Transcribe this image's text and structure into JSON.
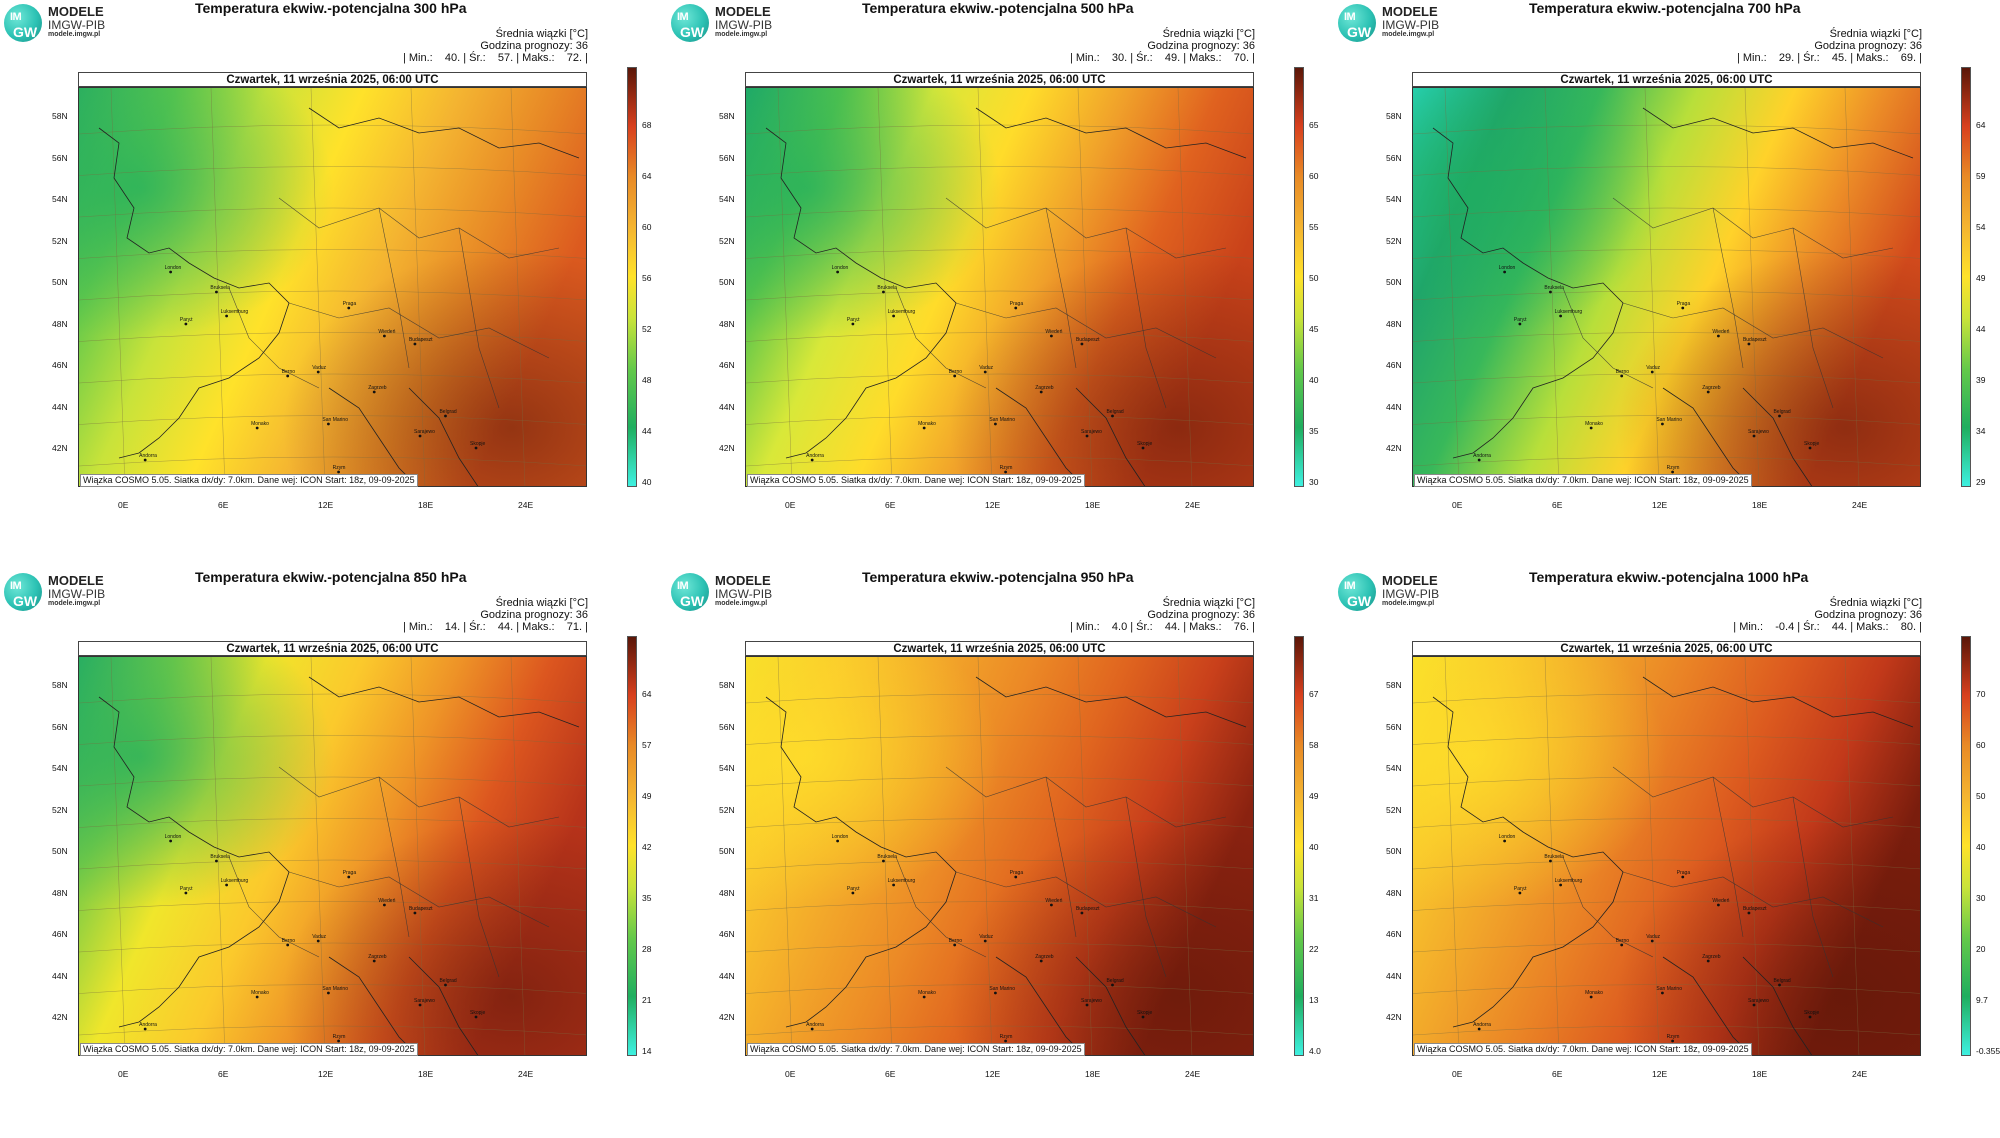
{
  "logo": {
    "name": "MODELE",
    "org": "IMGW-PIB",
    "url": "modele.imgw.pl",
    "im": "IM",
    "gw": "GW"
  },
  "stats_title": "Średnia wiązki [°C]",
  "forecast_hour": "Godzina prognozy: 36",
  "date": "Czwartek, 11 września 2025, 06:00 UTC",
  "source": "Wiązka COSMO 5.05. Siatka dx/dy: 7.0km. Dane wej: ICON Start: 18z, 09-09-2025",
  "lat_labels": [
    "58N",
    "56N",
    "54N",
    "52N",
    "50N",
    "48N",
    "46N",
    "44N",
    "42N"
  ],
  "lon_labels": [
    "0E",
    "6E",
    "12E",
    "18E",
    "24E"
  ],
  "cities": [
    "London",
    "Bruksela",
    "Paryż",
    "Luksemburg",
    "Praga",
    "Wiedeń",
    "Budapeszt",
    "Berno",
    "Vaduz",
    "Zagrzeb",
    "Belgrad",
    "San Marino",
    "Sarajewo",
    "Skopje",
    "Andorra",
    "Rzym",
    "Monako"
  ],
  "colors": {
    "low": "#3ef0e0",
    "green": "#1fae5f",
    "yellow": "#ffe22a",
    "orange": "#f2a12a",
    "red": "#d8401e",
    "dark": "#5a1608"
  },
  "panels": [
    {
      "title": "Temperatura ekwiw.-potencjalna 300 hPa",
      "stats": "| Min.:    40. | Śr.:    57. | Maks.:    72. |",
      "cbar_ticks": [
        "68",
        "64",
        "60",
        "56",
        "52",
        "48",
        "44",
        "40"
      ],
      "level": 300
    },
    {
      "title": "Temperatura ekwiw.-potencjalna 500 hPa",
      "stats": "| Min.:    30. | Śr.:    49. | Maks.:    70. |",
      "cbar_ticks": [
        "65",
        "60",
        "55",
        "50",
        "45",
        "40",
        "35",
        "30"
      ],
      "level": 500
    },
    {
      "title": "Temperatura ekwiw.-potencjalna 700 hPa",
      "stats": "| Min.:    29. | Śr.:    45. | Maks.:    69. |",
      "cbar_ticks": [
        "64",
        "59",
        "54",
        "49",
        "44",
        "39",
        "34",
        "29"
      ],
      "level": 700
    },
    {
      "title": "Temperatura ekwiw.-potencjalna 850 hPa",
      "stats": "| Min.:    14. | Śr.:    44. | Maks.:    71. |",
      "cbar_ticks": [
        "64",
        "57",
        "49",
        "42",
        "35",
        "28",
        "21",
        "14"
      ],
      "level": 850
    },
    {
      "title": "Temperatura ekwiw.-potencjalna 950 hPa",
      "stats": "| Min.:    4.0 | Śr.:    44. | Maks.:    76. |",
      "cbar_ticks": [
        "67",
        "58",
        "49",
        "40",
        "31",
        "22",
        "13",
        "4.0"
      ],
      "level": 950
    },
    {
      "title": "Temperatura ekwiw.-potencjalna 1000 hPa",
      "stats": "| Min.:    -0.4 | Śr.:    44. | Maks.:    80. |",
      "cbar_ticks": [
        "70",
        "60",
        "50",
        "40",
        "30",
        "20",
        "9.7",
        "-0.355"
      ],
      "level": 1000
    }
  ]
}
